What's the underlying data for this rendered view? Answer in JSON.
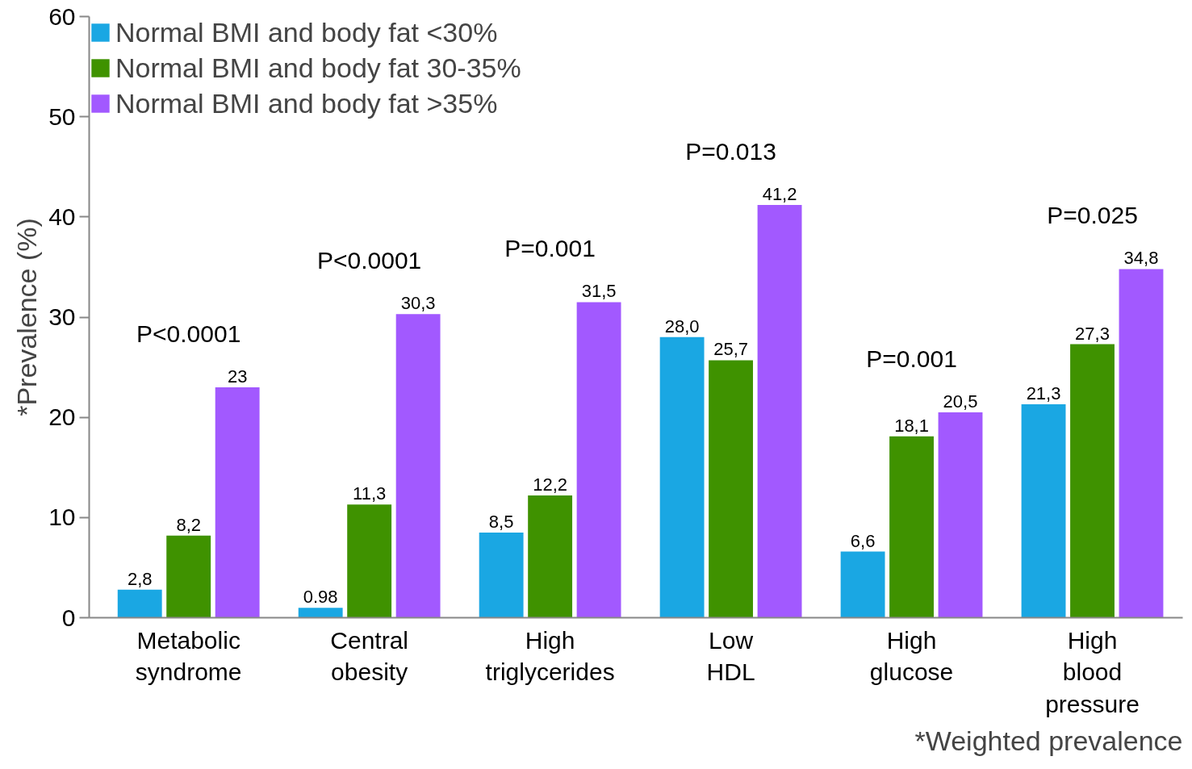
{
  "chart_data": {
    "type": "bar",
    "ylabel": "*Prevalence (%)",
    "categories": [
      "Metabolic syndrome",
      "Central obesity",
      "High triglycerides",
      "Low HDL",
      "High glucose",
      "High blood pressure"
    ],
    "series": [
      {
        "name": "Normal BMI and body fat <30%",
        "color": "#1aa7e3",
        "values": [
          2.8,
          0.98,
          8.5,
          28.0,
          6.6,
          21.3
        ],
        "value_labels": [
          "2,8",
          "0.98",
          "8,5",
          "28,0",
          "6,6",
          "21,3"
        ]
      },
      {
        "name": "Normal BMI and body fat 30-35%",
        "color": "#3f9200",
        "values": [
          8.2,
          11.3,
          12.2,
          25.7,
          18.1,
          27.3
        ],
        "value_labels": [
          "8,2",
          "11,3",
          "12,2",
          "25,7",
          "18,1",
          "27,3"
        ]
      },
      {
        "name": "Normal BMI and body fat >35%",
        "color": "#a259ff",
        "values": [
          23,
          30.3,
          31.5,
          41.2,
          20.5,
          34.8
        ],
        "value_labels": [
          "23",
          "30,3",
          "31,5",
          "41,2",
          "20,5",
          "34,8"
        ]
      }
    ],
    "ylim": [
      0,
      60
    ],
    "yticks": [
      0,
      10,
      20,
      30,
      40,
      50,
      60
    ],
    "grid": false,
    "legend": "top left",
    "annotations": [
      "P<0.0001",
      "P<0.0001",
      "P=0.001",
      "P=0.013",
      "P=0.001",
      "P=0.025",
      "*Weighted prevalence"
    ]
  }
}
